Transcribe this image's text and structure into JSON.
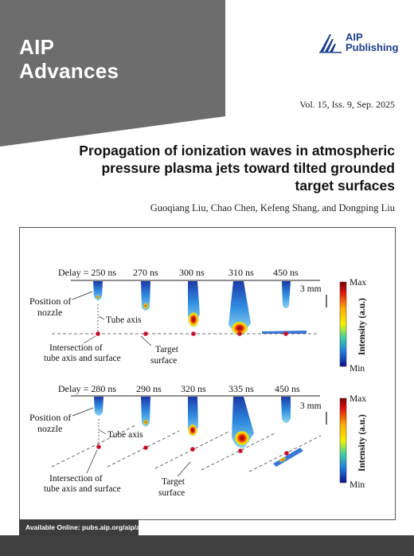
{
  "journal": {
    "line1": "AIP",
    "line2": "Advances"
  },
  "publisher": {
    "line1": "AIP",
    "line2": "Publishing",
    "icon": "aip-publishing-logo-icon",
    "color": "#1d3f8f"
  },
  "issue": "Vol. 15, Iss. 9, Sep. 2025",
  "paper": {
    "title_lines": [
      "Propagation of ionization waves in atmospheric",
      "pressure plasma jets toward tilted grounded",
      "target surfaces"
    ],
    "authors": "Guoqiang Liu, Chao Chen, Kefeng Shang, and Dongping Liu"
  },
  "figure": {
    "panel_a": {
      "delays": [
        "Delay = 250 ns",
        "270 ns",
        "300 ns",
        "310 ns",
        "450 ns"
      ],
      "label_nozzle_1": "Position of",
      "label_nozzle_2": "nozzle",
      "label_tube_axis": "Tube axis",
      "label_intersection_1": "Intersection of",
      "label_intersection_2": "tube axis and surface",
      "label_target_1": "Target",
      "label_target_2": "surface",
      "scale": "3 mm",
      "colorbar_max": "Max",
      "colorbar_min": "Min",
      "colorbar_label": "Intensity (a.u.)"
    },
    "panel_b": {
      "delays": [
        "Delay = 280 ns",
        "290 ns",
        "320 ns",
        "335 ns",
        "450 ns"
      ],
      "label_nozzle_1": "Position of",
      "label_nozzle_2": "nozzle",
      "label_tube_axis": "Tube axis",
      "label_intersection_1": "Intersection of",
      "label_intersection_2": "tube axis and surface",
      "label_target_1": "Target",
      "label_target_2": "surface",
      "scale": "3 mm",
      "colorbar_max": "Max",
      "colorbar_min": "Min",
      "colorbar_label": "Intensity (a.u.)"
    }
  },
  "availability": "Available Online: pubs.aip.org/aip/adv",
  "colors": {
    "banner": "#6d6d6d",
    "footer": "#414141",
    "marker": "#c8102e"
  }
}
